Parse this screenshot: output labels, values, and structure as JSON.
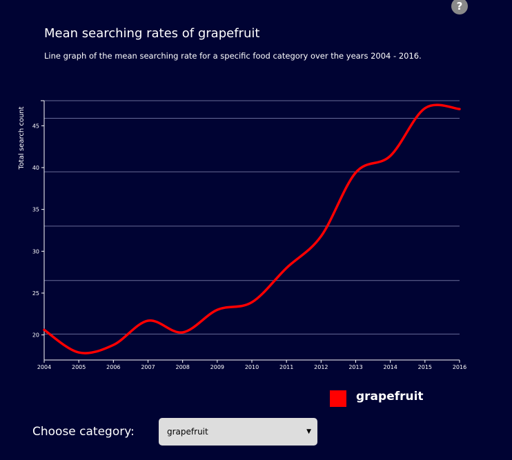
{
  "help": {
    "label": "?"
  },
  "chart_data": {
    "type": "line",
    "title": "Mean searching rates of grapefruit",
    "subtitle": "Line graph of the mean searching rate for a specific food category over the years 2004 - 2016.",
    "ylabel": "Total search count",
    "xlabel": "",
    "x": [
      2004,
      2005,
      2006,
      2007,
      2008,
      2009,
      2010,
      2011,
      2012,
      2013,
      2014,
      2015,
      2016
    ],
    "series": [
      {
        "name": "grapefruit",
        "color": "#ff0000",
        "values": [
          20.6,
          17.9,
          18.8,
          21.7,
          20.3,
          23.0,
          23.9,
          28.0,
          31.8,
          39.4,
          41.4,
          47.1,
          47.0
        ]
      }
    ],
    "xlim": [
      2004,
      2016
    ],
    "ylim": [
      17,
      48
    ],
    "xticks": [
      "2004",
      "2005",
      "2006",
      "2007",
      "2008",
      "2009",
      "2010",
      "2011",
      "2012",
      "2013",
      "2014",
      "2015",
      "2016"
    ],
    "yticks": [
      "20",
      "25",
      "30",
      "35",
      "40",
      "45"
    ],
    "gridlines": [
      20.1,
      26.5,
      33.0,
      39.5,
      45.9,
      48.0
    ],
    "grid": true,
    "legend_position": "bottom-right"
  },
  "controls": {
    "choose_label": "Choose category:",
    "selected": "grapefruit",
    "arrow": "▼"
  }
}
